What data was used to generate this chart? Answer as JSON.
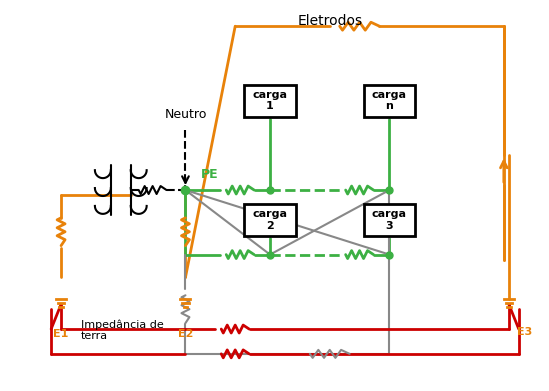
{
  "title": "Eletrodos",
  "label_neutro": "Neutro",
  "label_PE": "PE",
  "label_E1": "E1",
  "label_E2": "E2",
  "label_E3": "E3",
  "label_impedancia": "Impedância de\nterra",
  "carga_labels": [
    "carga\n1",
    "carga\nn",
    "carga\n2",
    "carga\n3"
  ],
  "color_orange": "#E8820A",
  "color_green": "#3CB043",
  "color_red": "#CC0000",
  "color_gray": "#888888",
  "color_black": "#000000",
  "bg_color": "#FFFFFF"
}
